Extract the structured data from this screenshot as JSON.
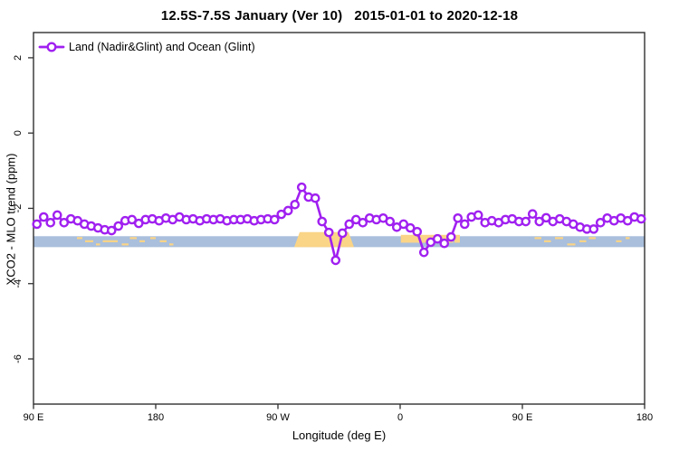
{
  "title": "12.5S-7.5S January (Ver 10)   2015-01-01 to 2020-12-18",
  "legend": {
    "label": "Land (Nadir&Glint) and Ocean (Glint)"
  },
  "colors": {
    "series": "#A020F0",
    "marker_fill": "#FFFFFF",
    "ocean_band": "#A9BFDC",
    "land_band": "#FAD487",
    "axis": "#303030",
    "text": "#000000"
  },
  "chart_data": {
    "type": "line",
    "title": "12.5S-7.5S January (Ver 10)   2015-01-01 to 2020-12-18",
    "xlabel": "Longitude (deg E)",
    "ylabel": "XCO2 - MLO trend (ppm)",
    "legend_position": "top-left",
    "grid": false,
    "x_axis": {
      "min": 90,
      "max": 540,
      "note": "longitude unwrapped eastward from 90E through 180, 90W, 0, 90E to 180",
      "ticks": [
        {
          "pos": 90,
          "label": "90 E"
        },
        {
          "pos": 180,
          "label": "180"
        },
        {
          "pos": 270,
          "label": "90 W"
        },
        {
          "pos": 360,
          "label": "0"
        },
        {
          "pos": 450,
          "label": "90 E"
        },
        {
          "pos": 540,
          "label": "180"
        }
      ]
    },
    "y_axis": {
      "min": -7.2,
      "max": 2.67,
      "ticks": [
        2,
        0,
        -2,
        -4,
        -6
      ]
    },
    "map_band": {
      "ocean_color": "#A9BFDC",
      "land_color": "#FAD487",
      "value_top": -2.74,
      "value_bottom": -3.03,
      "land_solid": [
        {
          "from": 282,
          "to": 326,
          "raised": true
        },
        {
          "from": 360.5,
          "to": 399,
          "raised": false
        },
        {
          "from": 400,
          "to": 404,
          "raised": false
        }
      ],
      "land_speckles": [
        {
          "from": 122,
          "to": 126,
          "row": 0
        },
        {
          "from": 128,
          "to": 134,
          "row": 1
        },
        {
          "from": 136,
          "to": 139,
          "row": 2
        },
        {
          "from": 141,
          "to": 152,
          "row": 1
        },
        {
          "from": 155,
          "to": 160,
          "row": 2
        },
        {
          "from": 161,
          "to": 166,
          "row": 0
        },
        {
          "from": 168,
          "to": 172,
          "row": 1
        },
        {
          "from": 176,
          "to": 180,
          "row": 0
        },
        {
          "from": 183,
          "to": 188,
          "row": 1
        },
        {
          "from": 190,
          "to": 193,
          "row": 2
        },
        {
          "from": 459,
          "to": 464,
          "row": 0
        },
        {
          "from": 466,
          "to": 471,
          "row": 1
        },
        {
          "from": 474,
          "to": 480,
          "row": 0
        },
        {
          "from": 483,
          "to": 489,
          "row": 2
        },
        {
          "from": 492,
          "to": 497,
          "row": 1
        },
        {
          "from": 499,
          "to": 504,
          "row": 0
        },
        {
          "from": 519,
          "to": 523,
          "row": 1
        },
        {
          "from": 526,
          "to": 529,
          "row": 0
        }
      ]
    },
    "series": [
      {
        "name": "Land (Nadir&Glint) and Ocean (Glint)",
        "color": "#A020F0",
        "marker": "open-circle",
        "x": [
          92.5,
          97.5,
          102.5,
          107.5,
          112.5,
          117.5,
          122.5,
          127.5,
          132.5,
          137.5,
          142.5,
          147.5,
          152.5,
          157.5,
          162.5,
          167.5,
          172.5,
          177.5,
          182.5,
          187.5,
          192.5,
          197.5,
          202.5,
          207.5,
          212.5,
          217.5,
          222.5,
          227.5,
          232.5,
          237.5,
          242.5,
          247.5,
          252.5,
          257.5,
          262.5,
          267.5,
          272.5,
          277.5,
          282.5,
          287.5,
          292.5,
          297.5,
          302.5,
          307.5,
          312.5,
          317.5,
          322.5,
          327.5,
          332.5,
          337.5,
          342.5,
          347.5,
          352.5,
          357.5,
          362.5,
          367.5,
          372.5,
          377.5,
          382.5,
          387.5,
          392.5,
          397.5,
          402.5,
          407.5,
          412.5,
          417.5,
          422.5,
          427.5,
          432.5,
          437.5,
          442.5,
          447.5,
          452.5,
          457.5,
          462.5,
          467.5,
          472.5,
          477.5,
          482.5,
          487.5,
          492.5,
          497.5,
          502.5,
          507.5,
          512.5,
          517.5,
          522.5,
          527.5,
          532.5,
          537.5
        ],
        "y": [
          -2.42,
          -2.23,
          -2.38,
          -2.18,
          -2.38,
          -2.28,
          -2.33,
          -2.42,
          -2.47,
          -2.52,
          -2.57,
          -2.59,
          -2.47,
          -2.33,
          -2.3,
          -2.4,
          -2.3,
          -2.28,
          -2.33,
          -2.26,
          -2.3,
          -2.23,
          -2.3,
          -2.28,
          -2.33,
          -2.28,
          -2.3,
          -2.28,
          -2.33,
          -2.3,
          -2.3,
          -2.28,
          -2.33,
          -2.3,
          -2.28,
          -2.3,
          -2.16,
          -2.06,
          -1.9,
          -1.44,
          -1.7,
          -1.73,
          -2.35,
          -2.64,
          -3.38,
          -2.66,
          -2.42,
          -2.3,
          -2.38,
          -2.26,
          -2.3,
          -2.26,
          -2.35,
          -2.5,
          -2.42,
          -2.52,
          -2.62,
          -3.17,
          -2.9,
          -2.81,
          -2.93,
          -2.76,
          -2.26,
          -2.42,
          -2.23,
          -2.18,
          -2.38,
          -2.33,
          -2.38,
          -2.3,
          -2.28,
          -2.35,
          -2.35,
          -2.15,
          -2.35,
          -2.25,
          -2.35,
          -2.28,
          -2.35,
          -2.42,
          -2.5,
          -2.55,
          -2.55,
          -2.38,
          -2.26,
          -2.33,
          -2.26,
          -2.33,
          -2.23,
          -2.28
        ]
      }
    ]
  }
}
